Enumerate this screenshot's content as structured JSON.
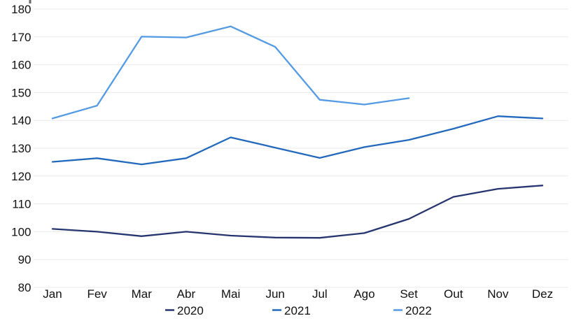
{
  "chart_data": {
    "type": "line",
    "title": "",
    "xlabel": "",
    "ylabel": "",
    "categories": [
      "Jan",
      "Fev",
      "Mar",
      "Abr",
      "Mai",
      "Jun",
      "Jul",
      "Ago",
      "Set",
      "Out",
      "Nov",
      "Dez"
    ],
    "y_ticks": [
      "80",
      "90",
      "100",
      "110",
      "120",
      "130",
      "140",
      "150",
      "160",
      "170",
      "180"
    ],
    "ylim": [
      80,
      180
    ],
    "ytick_step": 10,
    "grid": "horizontal",
    "legend_position": "bottom",
    "series": [
      {
        "name": "2020",
        "color": "#26356F",
        "values": [
          101.0,
          100.0,
          98.4,
          100.0,
          98.6,
          97.9,
          97.8,
          99.5,
          104.6,
          112.5,
          115.4,
          116.6
        ]
      },
      {
        "name": "2021",
        "color": "#2269BE",
        "values": [
          125.1,
          126.4,
          124.2,
          126.4,
          133.9,
          130.2,
          126.5,
          130.4,
          133.0,
          137.0,
          141.5,
          140.7
        ]
      },
      {
        "name": "2022",
        "color": "#549BE4",
        "values": [
          140.7,
          145.3,
          170.1,
          169.8,
          173.8,
          166.4,
          147.4,
          145.7,
          148.0
        ]
      }
    ],
    "colors": {
      "gridline": "#EAEAEA",
      "axis_text": "#111111"
    }
  }
}
